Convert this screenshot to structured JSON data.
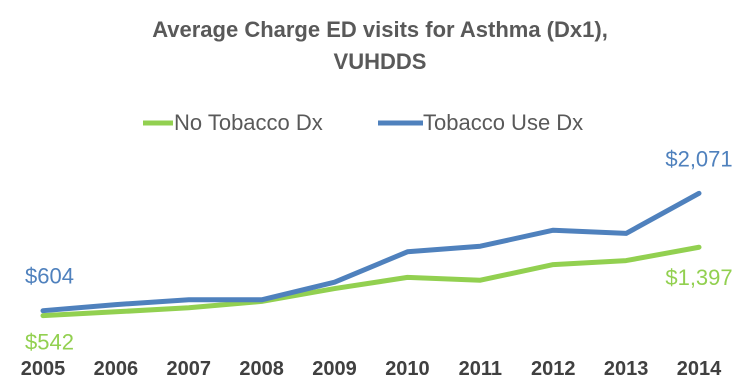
{
  "chart_data": {
    "type": "line",
    "title": "Average Charge ED visits for Asthma (Dx1),",
    "subtitle": "VUHDDS",
    "xlabel": "",
    "ylabel": "",
    "categories": [
      "2005",
      "2006",
      "2007",
      "2008",
      "2009",
      "2010",
      "2011",
      "2012",
      "2013",
      "2014"
    ],
    "ylim": [
      400,
      2300
    ],
    "grid": false,
    "legend_position": "top",
    "series": [
      {
        "name": "No Tobacco Dx",
        "color": "#92D050",
        "values": [
          542,
          590,
          640,
          720,
          880,
          1020,
          985,
          1180,
          1230,
          1397
        ],
        "labels": [
          {
            "index": 0,
            "text": "$542"
          },
          {
            "index": 9,
            "text": "$1,397"
          }
        ]
      },
      {
        "name": "Tobacco Use Dx",
        "color": "#4F81BD",
        "values": [
          604,
          680,
          740,
          740,
          960,
          1340,
          1410,
          1610,
          1570,
          2071
        ],
        "labels": [
          {
            "index": 0,
            "text": "$604"
          },
          {
            "index": 9,
            "text": "$2,071"
          }
        ]
      }
    ]
  }
}
